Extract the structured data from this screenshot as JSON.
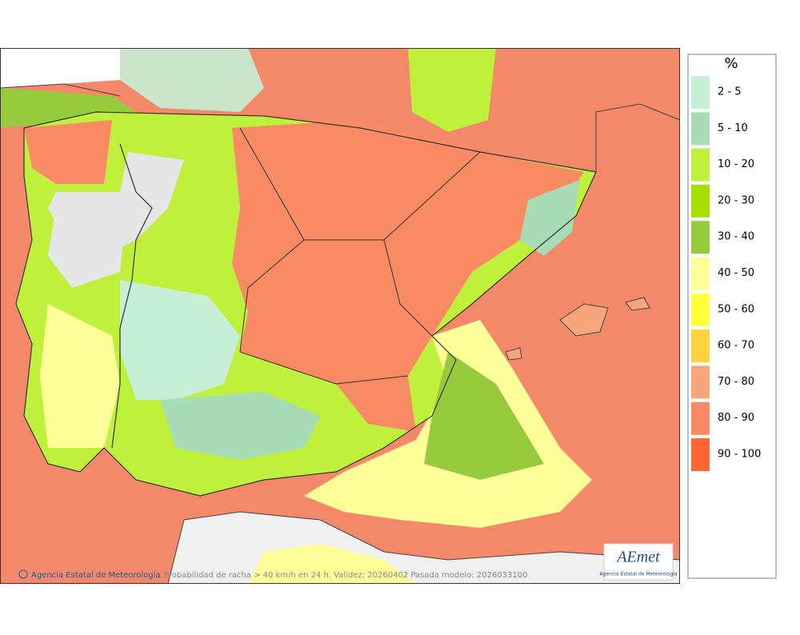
{
  "legend": {
    "title": "%",
    "items": [
      {
        "label": "2 - 5",
        "color": "#c6f0d6"
      },
      {
        "label": "5 - 10",
        "color": "#a8dcb6"
      },
      {
        "label": "10 - 20",
        "color": "#bef03c"
      },
      {
        "label": "20 - 30",
        "color": "#a6e000"
      },
      {
        "label": "30 - 40",
        "color": "#96cc3c"
      },
      {
        "label": "40 - 50",
        "color": "#ffff99"
      },
      {
        "label": "50 - 60",
        "color": "#ffff3a"
      },
      {
        "label": "60 - 70",
        "color": "#ffd23e"
      },
      {
        "label": "70 - 80",
        "color": "#f6a67a"
      },
      {
        "label": "80 - 90",
        "color": "#f88a64"
      },
      {
        "label": "90 - 100",
        "color": "#ff6633"
      }
    ]
  },
  "map": {
    "credit": "Agencia Estatal de Meteorología",
    "caption": "Probabilidad de racha > 40 km/h en 24 h. Validez: 20260402 Pasada modelo: 2026033100",
    "logo": {
      "text": "AEmet",
      "subtitle": "Agencia Estatal de Meteorología"
    }
  }
}
